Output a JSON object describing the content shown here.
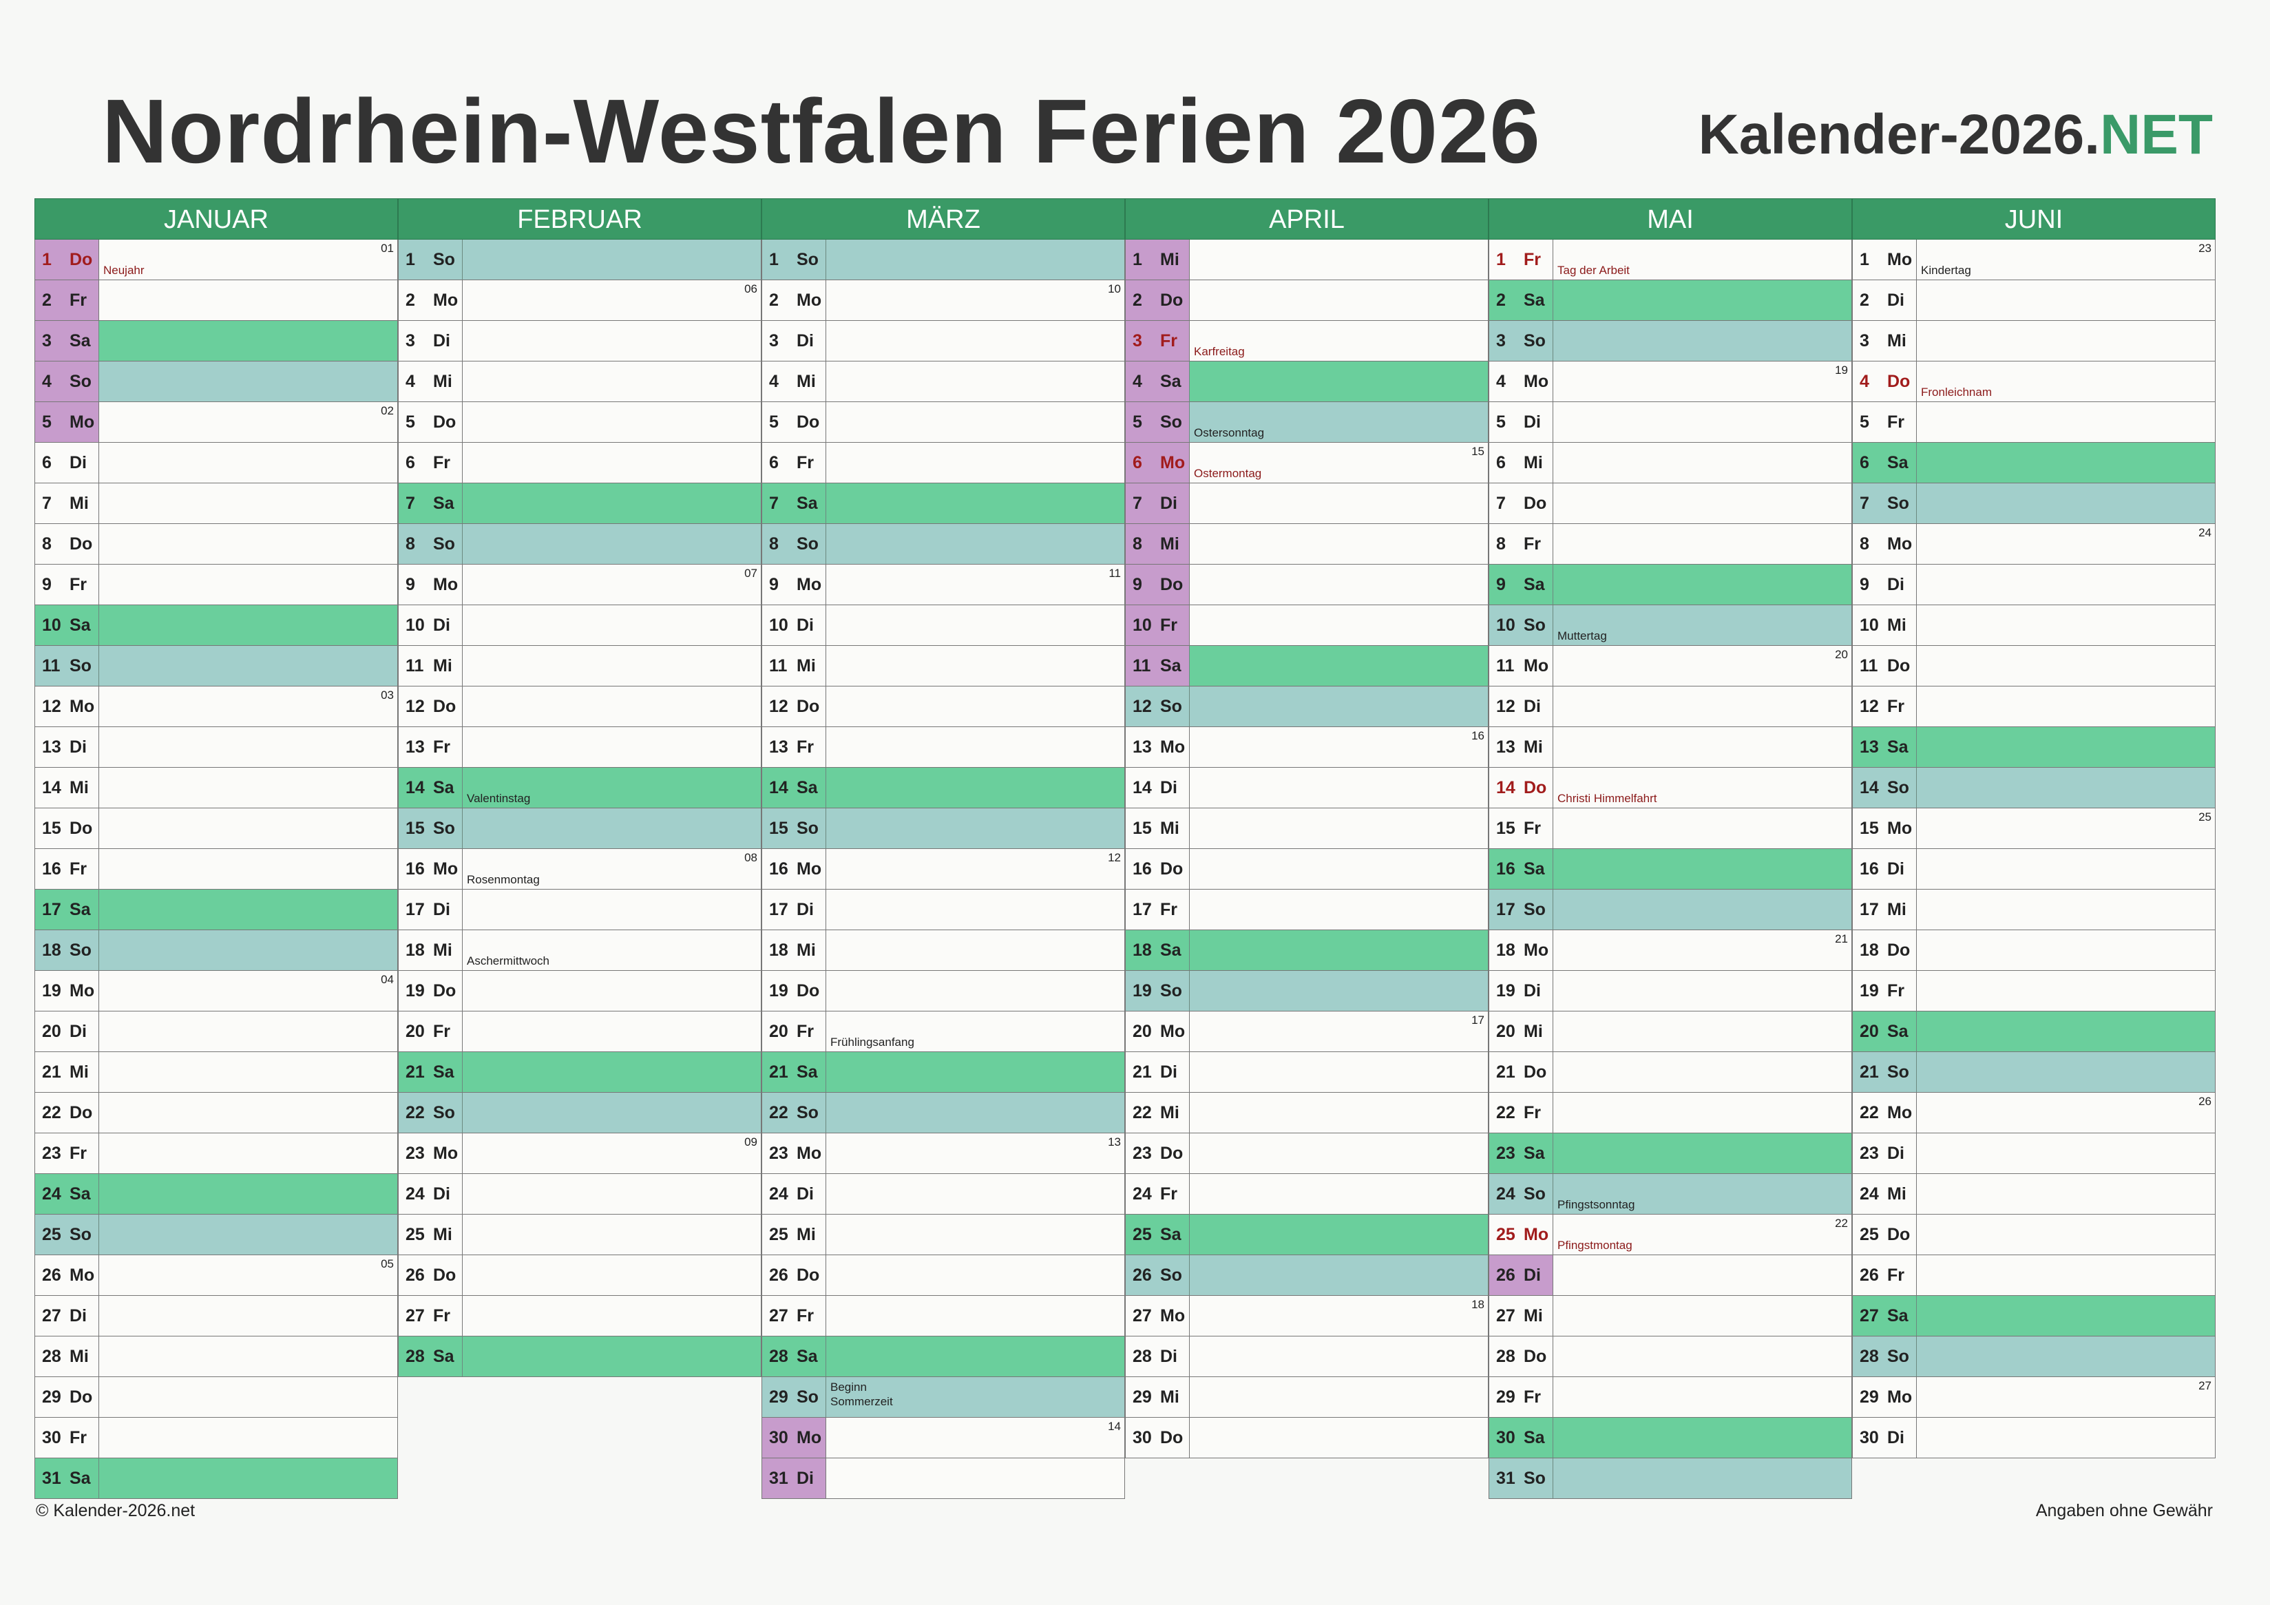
{
  "title": "Nordrhein-Westfalen Ferien 2026",
  "brand": {
    "main": "Kalender-2026.",
    "accent": "NET"
  },
  "footer": {
    "copyright": "© Kalender-2026.net",
    "disclaimer": "Angaben ohne Gewähr"
  },
  "colors": {
    "header": "#3a9a66",
    "saturday": "#6acf9c",
    "sunday": "#a2cfcb",
    "ferien": "#c79ccc",
    "holiday_text": "#a11c1c"
  },
  "weekday_abbr": [
    "Mo",
    "Di",
    "Mi",
    "Do",
    "Fr",
    "Sa",
    "So"
  ],
  "months": [
    {
      "name": "JANUAR",
      "days": 31,
      "first_weekday": 3,
      "ferien": [
        1,
        2,
        3,
        4,
        5
      ],
      "holidays": {
        "1": "Neujahr"
      },
      "events": {},
      "weeks": {
        "1": "01",
        "5": "02",
        "12": "03",
        "19": "04",
        "26": "05"
      }
    },
    {
      "name": "FEBRUAR",
      "days": 28,
      "first_weekday": 6,
      "ferien": [],
      "holidays": {},
      "events": {
        "14": "Valentinstag",
        "16": "Rosenmontag",
        "18": "Aschermittwoch"
      },
      "weeks": {
        "2": "06",
        "9": "07",
        "16": "08",
        "23": "09"
      }
    },
    {
      "name": "MÄRZ",
      "days": 31,
      "first_weekday": 6,
      "ferien": [
        30,
        31
      ],
      "holidays": {},
      "events": {
        "20": "Frühlingsanfang",
        "29": "Beginn Sommerzeit"
      },
      "weeks": {
        "2": "10",
        "9": "11",
        "16": "12",
        "23": "13",
        "30": "14"
      }
    },
    {
      "name": "APRIL",
      "days": 30,
      "first_weekday": 2,
      "ferien": [
        1,
        2,
        3,
        4,
        5,
        6,
        7,
        8,
        9,
        10,
        11
      ],
      "holidays": {
        "3": "Karfreitag",
        "6": "Ostermontag"
      },
      "events": {
        "5": "Ostersonntag"
      },
      "weeks": {
        "6": "15",
        "13": "16",
        "20": "17",
        "27": "18"
      }
    },
    {
      "name": "MAI",
      "days": 31,
      "first_weekday": 4,
      "ferien": [
        26
      ],
      "holidays": {
        "1": "Tag der Arbeit",
        "14": "Christi Himmelfahrt",
        "25": "Pfingstmontag"
      },
      "events": {
        "10": "Muttertag",
        "24": "Pfingstsonntag"
      },
      "weeks": {
        "4": "19",
        "11": "20",
        "18": "21",
        "25": "22"
      }
    },
    {
      "name": "JUNI",
      "days": 30,
      "first_weekday": 0,
      "ferien": [],
      "holidays": {
        "4": "Fronleichnam"
      },
      "events": {
        "1": "Kindertag"
      },
      "weeks": {
        "1": "23",
        "8": "24",
        "15": "25",
        "22": "26",
        "29": "27"
      }
    }
  ]
}
